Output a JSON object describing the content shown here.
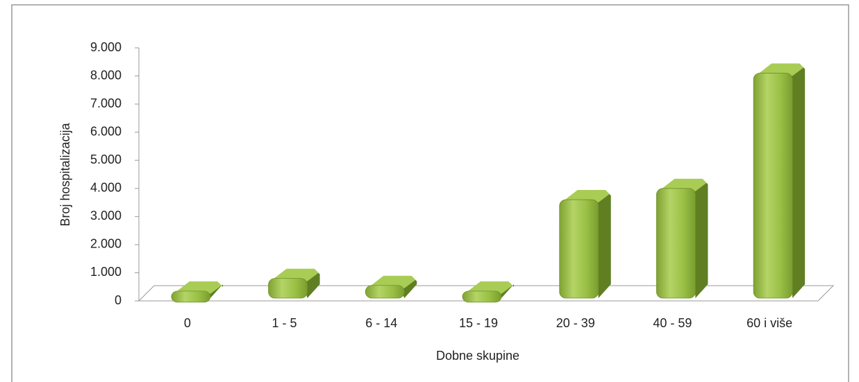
{
  "chart_data": {
    "type": "bar3d",
    "x_label": "Dobne skupine",
    "y_label": "Broj hospitalizacija",
    "categories": [
      "0",
      "1 - 5",
      "6 - 14",
      "15 - 19",
      "20 - 39",
      "40 - 59",
      "60 i više"
    ],
    "values": [
      250,
      700,
      450,
      250,
      3500,
      3900,
      8000
    ],
    "color": "#8db33a",
    "ylim": [
      0,
      9000
    ],
    "yticks": [
      0,
      {
        "value": 1000,
        "label": "1.000"
      },
      {
        "value": 2000,
        "label": "2.000"
      },
      {
        "value": 3000,
        "label": "3.000"
      },
      {
        "value": 4000,
        "label": "4.000"
      },
      {
        "value": 5000,
        "label": "5.000"
      },
      {
        "value": 6000,
        "label": "6.000"
      },
      {
        "value": 7000,
        "label": "7.000"
      },
      {
        "value": 8000,
        "label": "8.000"
      },
      {
        "value": 9000,
        "label": "9.000"
      }
    ],
    "grid": false
  }
}
